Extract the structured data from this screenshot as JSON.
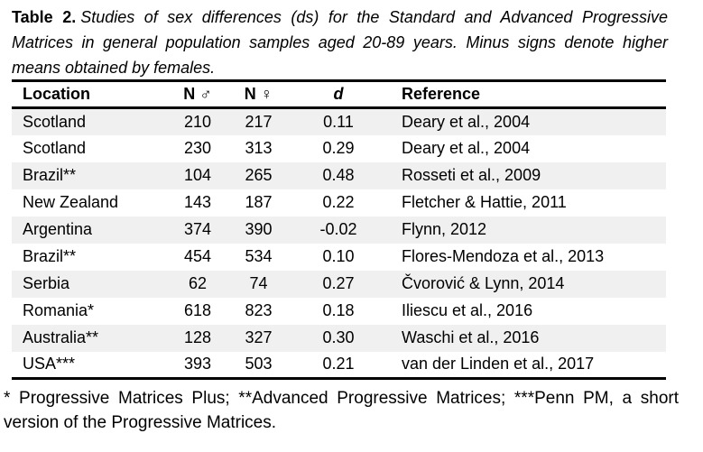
{
  "page": {
    "background": "#ffffff",
    "text_color": "#000000"
  },
  "caption": {
    "label": "Table 2.",
    "text": "Studies of sex differences (ds) for the Standard and Advanced Progressive Matrices in general population samples aged 20-89 years. Minus signs denote higher means obtained by females."
  },
  "table": {
    "stripe_color": "#f0f0f0",
    "rule_color": "#000000",
    "columns": [
      {
        "key": "location",
        "label": "Location"
      },
      {
        "key": "n_male",
        "label": "N ♂"
      },
      {
        "key": "n_female",
        "label": "N ♀"
      },
      {
        "key": "d",
        "label": "d"
      },
      {
        "key": "reference",
        "label": "Reference"
      }
    ],
    "rows": [
      {
        "location": "Scotland",
        "n_male": "210",
        "n_female": "217",
        "d": "0.11",
        "reference": "Deary et al., 2004"
      },
      {
        "location": "Scotland",
        "n_male": "230",
        "n_female": "313",
        "d": "0.29",
        "reference": "Deary et al., 2004"
      },
      {
        "location": "Brazil**",
        "n_male": "104",
        "n_female": "265",
        "d": "0.48",
        "reference": "Rosseti et al., 2009"
      },
      {
        "location": "New Zealand",
        "n_male": "143",
        "n_female": "187",
        "d": "0.22",
        "reference": "Fletcher & Hattie, 2011"
      },
      {
        "location": "Argentina",
        "n_male": "374",
        "n_female": "390",
        "d": "-0.02",
        "reference": "Flynn, 2012"
      },
      {
        "location": "Brazil**",
        "n_male": "454",
        "n_female": "534",
        "d": "0.10",
        "reference": "Flores-Mendoza et al., 2013"
      },
      {
        "location": "Serbia",
        "n_male": "62",
        "n_female": "74",
        "d": "0.27",
        "reference": "Čvorović & Lynn, 2014"
      },
      {
        "location": "Romania*",
        "n_male": "618",
        "n_female": "823",
        "d": "0.18",
        "reference": "Iliescu et al., 2016"
      },
      {
        "location": "Australia**",
        "n_male": "128",
        "n_female": "327",
        "d": "0.30",
        "reference": "Waschi et al., 2016"
      },
      {
        "location": "USA***",
        "n_male": "393",
        "n_female": "503",
        "d": "0.21",
        "reference": "van der Linden et al., 2017"
      }
    ]
  },
  "footnote": {
    "text": "* Progressive Matrices Plus; **Advanced Progressive Matrices; ***Penn PM, a short version of the Progressive Matrices."
  }
}
